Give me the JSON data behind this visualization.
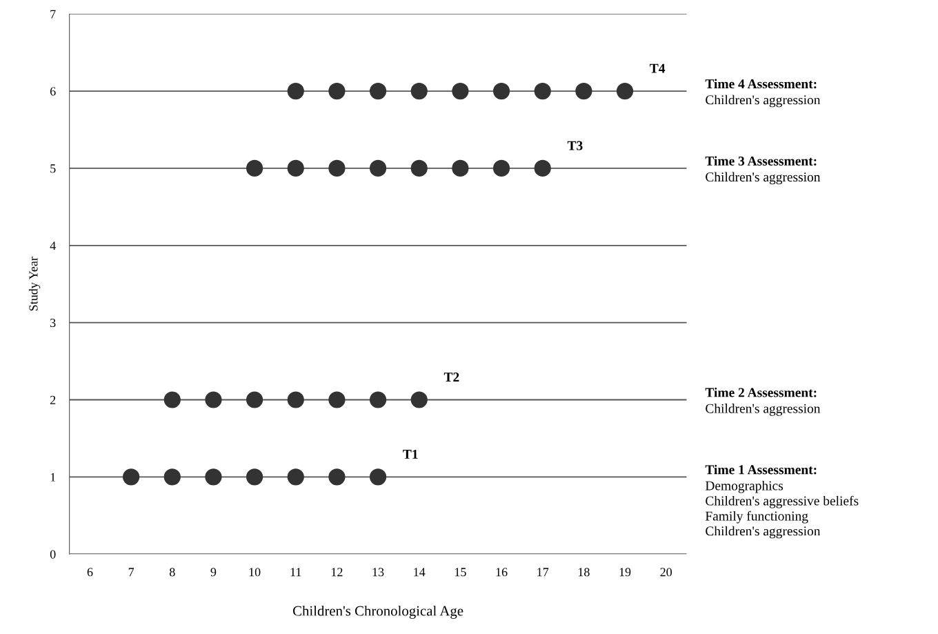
{
  "chart_data": {
    "type": "scatter",
    "xlabel": "Children's Chronological Age",
    "ylabel": "Study Year",
    "xlim": [
      5.5,
      20.5
    ],
    "xticks": [
      6,
      7,
      8,
      9,
      10,
      11,
      12,
      13,
      14,
      15,
      16,
      17,
      18,
      19,
      20
    ],
    "ylim": [
      0,
      7
    ],
    "yticks": [
      0,
      1,
      2,
      3,
      4,
      5,
      6,
      7
    ],
    "grid": "y",
    "marker": "circle",
    "series": [
      {
        "name": "T1",
        "color": "#333333",
        "x": [
          7,
          8,
          9,
          10,
          11,
          12,
          13
        ],
        "values": [
          1,
          1,
          1,
          1,
          1,
          1,
          1
        ]
      },
      {
        "name": "T2",
        "color": "#333333",
        "x": [
          8,
          9,
          10,
          11,
          12,
          13,
          14
        ],
        "values": [
          2,
          2,
          2,
          2,
          2,
          2,
          2
        ]
      },
      {
        "name": "T3",
        "color": "#333333",
        "x": [
          10,
          11,
          12,
          13,
          14,
          15,
          16,
          17
        ],
        "values": [
          5,
          5,
          5,
          5,
          5,
          5,
          5,
          5
        ]
      },
      {
        "name": "T4",
        "color": "#333333",
        "x": [
          11,
          12,
          13,
          14,
          15,
          16,
          17,
          18,
          19
        ],
        "values": [
          6,
          6,
          6,
          6,
          6,
          6,
          6,
          6,
          6
        ]
      }
    ],
    "annotations": [
      "Time 4 Assessment:\nChildren's aggression",
      "Time 3 Assessment:\nChildren's aggression",
      "Time 2 Assessment:\nChildren's aggression",
      "Time 1 Assessment:\nDemographics\nChildren's aggressive beliefs\nFamily functioning\nChildren's aggression"
    ]
  }
}
